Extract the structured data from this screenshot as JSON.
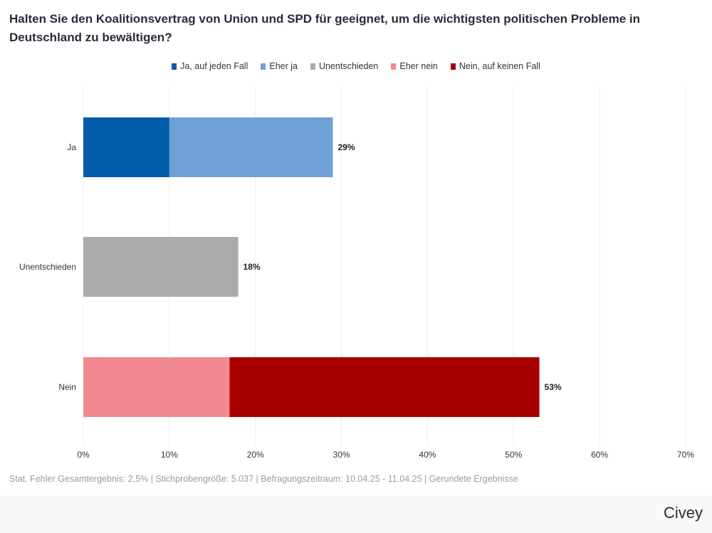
{
  "title": "Halten Sie den Koalitionsvertrag von Union und SPD für geeignet, um die wichtigsten politischen Probleme in Deutschland zu bewältigen?",
  "footer_note": "Stat. Fehler Gesamtergebnis: 2,5% | Stichprobengröße: 5.037 | Befragungszeitraum: 10.04.25 - 11.04.25 | Gerundete Ergebnisse",
  "brand": "Civey",
  "chart_data": {
    "type": "bar",
    "orientation": "horizontal",
    "stacked": true,
    "title": "Halten Sie den Koalitionsvertrag von Union und SPD für geeignet, um die wichtigsten politischen Probleme in Deutschland zu bewältigen?",
    "categories": [
      "Ja",
      "Unentschieden",
      "Nein"
    ],
    "series": [
      {
        "name": "Ja, auf jeden Fall",
        "color": "#005ca8",
        "values": [
          10,
          0,
          0
        ]
      },
      {
        "name": "Eher ja",
        "color": "#6fa1d6",
        "values": [
          19,
          0,
          0
        ]
      },
      {
        "name": "Unentschieden",
        "color": "#aaaaab",
        "values": [
          0,
          18,
          0
        ]
      },
      {
        "name": "Eher nein",
        "color": "#f08a90",
        "values": [
          0,
          0,
          17
        ]
      },
      {
        "name": "Nein, auf keinen Fall",
        "color": "#a80000",
        "values": [
          0,
          0,
          36
        ]
      }
    ],
    "totals": [
      "29%",
      "18%",
      "53%"
    ],
    "xlim": [
      0,
      70
    ],
    "xticks": [
      0,
      10,
      20,
      30,
      40,
      50,
      60,
      70
    ],
    "xtick_labels": [
      "0%",
      "10%",
      "20%",
      "30%",
      "40%",
      "50%",
      "60%",
      "70%"
    ],
    "xlabel": "",
    "ylabel": "",
    "grid": true,
    "legend_position": "top-center"
  }
}
